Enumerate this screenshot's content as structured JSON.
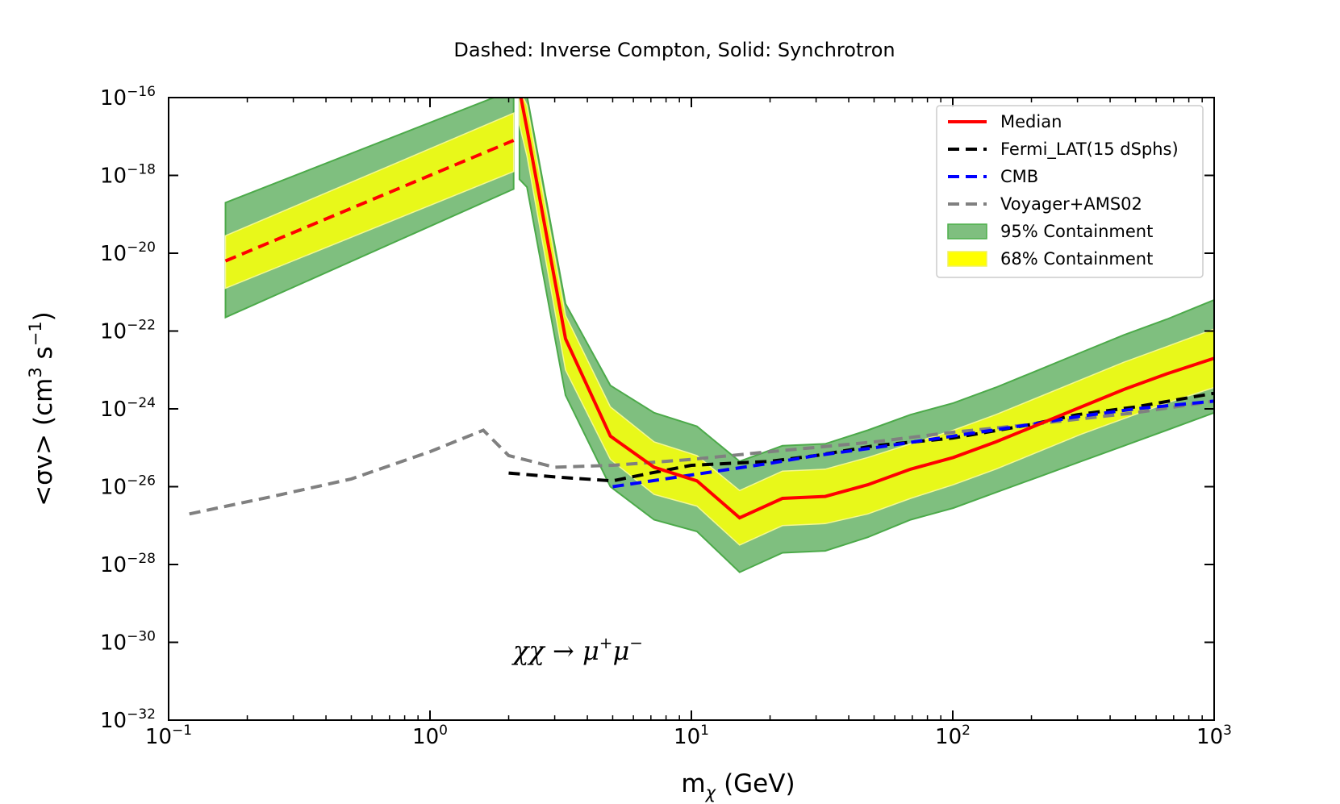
{
  "chart_data": {
    "type": "line",
    "title": "Dashed: Inverse Compton, Solid: Synchrotron",
    "xlabel": {
      "main": "m",
      "sub": "χ",
      "unit": "(GeV)"
    },
    "ylabel": {
      "prefix": "<σv> (cm",
      "sup1": "3",
      "mid": " s",
      "sup2": "−1",
      "suffix": ")"
    },
    "x_scale": "log",
    "y_scale": "log",
    "xlim": [
      0.1,
      1000
    ],
    "ylim": [
      1e-32,
      1e-16
    ],
    "x_ticks": [
      {
        "base": "10",
        "exp": "−1",
        "value": 0.1
      },
      {
        "base": "10",
        "exp": "0",
        "value": 1
      },
      {
        "base": "10",
        "exp": "1",
        "value": 10
      },
      {
        "base": "10",
        "exp": "2",
        "value": 100
      },
      {
        "base": "10",
        "exp": "3",
        "value": 1000
      }
    ],
    "y_ticks": [
      {
        "base": "10",
        "exp": "−16",
        "value": -16
      },
      {
        "base": "10",
        "exp": "−18",
        "value": -18
      },
      {
        "base": "10",
        "exp": "−20",
        "value": -20
      },
      {
        "base": "10",
        "exp": "−22",
        "value": -22
      },
      {
        "base": "10",
        "exp": "−24",
        "value": -24
      },
      {
        "base": "10",
        "exp": "−26",
        "value": -26
      },
      {
        "base": "10",
        "exp": "−28",
        "value": -28
      },
      {
        "base": "10",
        "exp": "−30",
        "value": -30
      },
      {
        "base": "10",
        "exp": "−32",
        "value": -32
      }
    ],
    "annotation": {
      "text": "χχ → μ",
      "sup1": "+",
      "mid": "μ",
      "sup2": "−"
    },
    "legend_position": "top-right",
    "legend": [
      {
        "label": "Median",
        "kind": "line",
        "color": "#ff0000",
        "dash": "solid"
      },
      {
        "label": "Fermi_LAT(15 dSphs)",
        "kind": "line",
        "color": "#000000",
        "dash": "dashed"
      },
      {
        "label": "CMB",
        "kind": "line",
        "color": "#0000ff",
        "dash": "dashed"
      },
      {
        "label": "Voyager+AMS02",
        "kind": "line",
        "color": "#808080",
        "dash": "dashed"
      },
      {
        "label": "95% Containment",
        "kind": "patch",
        "color": "#7fbf7f",
        "edge": "#4daf4a"
      },
      {
        "label": "68% Containment",
        "kind": "patch",
        "color": "#ffff00",
        "edge": "#f0f060"
      }
    ],
    "colors": {
      "band95_fill": "#7fbf7f",
      "band95_edge": "#4caa4a",
      "band68_fill": "#e8f81a",
      "band68_edge": "#f4f890",
      "median": "#ff0000",
      "fermi": "#000000",
      "cmb": "#0000ff",
      "voyager": "#808080"
    },
    "note_y": "y values are log10(<σv> in cm^3 s^-1)",
    "inverse_compton": {
      "x": [
        0.165,
        2.09
      ],
      "median": [
        -20.2,
        -17.1
      ],
      "band68_lo": [
        -20.9,
        -17.9
      ],
      "band68_hi": [
        -19.55,
        -16.4
      ],
      "band95_lo": [
        -21.65,
        -18.35
      ],
      "band95_hi": [
        -18.7,
        -15.8
      ]
    },
    "synchrotron": {
      "x": [
        2.2,
        2.35,
        3.3,
        4.9,
        7.2,
        10.5,
        15.3,
        22.3,
        32.5,
        47.3,
        69,
        100.5,
        146,
        213,
        310,
        452,
        658,
        1000
      ],
      "median": [
        -15.8,
        -16.8,
        -22.2,
        -24.7,
        -25.5,
        -25.85,
        -26.8,
        -26.3,
        -26.25,
        -25.95,
        -25.55,
        -25.25,
        -24.85,
        -24.4,
        -23.95,
        -23.5,
        -23.1,
        -22.7
      ],
      "band68_lo": [
        -16.7,
        -17.5,
        -23.0,
        -25.3,
        -26.2,
        -26.5,
        -27.5,
        -27.0,
        -26.95,
        -26.7,
        -26.3,
        -25.95,
        -25.55,
        -25.1,
        -24.65,
        -24.25,
        -23.85,
        -23.45
      ],
      "band68_hi": [
        -15.8,
        -16.2,
        -21.6,
        -23.95,
        -24.85,
        -25.2,
        -26.1,
        -25.6,
        -25.55,
        -25.25,
        -24.9,
        -24.55,
        -24.15,
        -23.7,
        -23.25,
        -22.8,
        -22.4,
        -21.95
      ],
      "band95_lo": [
        -18.1,
        -18.3,
        -23.65,
        -26.0,
        -26.85,
        -27.15,
        -28.2,
        -27.7,
        -27.65,
        -27.3,
        -26.85,
        -26.55,
        -26.15,
        -25.75,
        -25.35,
        -24.95,
        -24.55,
        -24.1
      ],
      "band95_hi": [
        -15.8,
        -15.95,
        -21.3,
        -23.4,
        -24.1,
        -24.45,
        -25.35,
        -24.95,
        -24.9,
        -24.55,
        -24.15,
        -23.85,
        -23.45,
        -23.0,
        -22.55,
        -22.1,
        -21.7,
        -21.2
      ]
    },
    "fermi_lat": {
      "x": [
        2.0,
        3.0,
        5.0,
        7.0,
        10.0,
        20.0,
        30.0,
        50.0,
        100.0,
        200.0,
        300.0,
        500.0,
        1000.0
      ],
      "y": [
        -25.65,
        -25.75,
        -25.85,
        -25.65,
        -25.45,
        -25.35,
        -25.2,
        -24.95,
        -24.75,
        -24.4,
        -24.15,
        -23.95,
        -23.6
      ]
    },
    "cmb": {
      "x": [
        5.0,
        10.0,
        20.0,
        30.0,
        50.0,
        100.0,
        200.0,
        300.0,
        500.0,
        1000.0
      ],
      "y": [
        -26.0,
        -25.7,
        -25.4,
        -25.2,
        -25.0,
        -24.7,
        -24.4,
        -24.2,
        -24.0,
        -23.8
      ]
    },
    "voyager_ams02": {
      "x": [
        0.12,
        0.25,
        0.5,
        1.0,
        1.6,
        2.0,
        3.0,
        5.0,
        10.0,
        20.0,
        50.0,
        100.0,
        200.0,
        500.0,
        1000.0
      ],
      "y": [
        -26.7,
        -26.25,
        -25.8,
        -25.1,
        -24.55,
        -25.2,
        -25.5,
        -25.45,
        -25.3,
        -25.1,
        -24.85,
        -24.6,
        -24.4,
        -24.1,
        -23.8
      ]
    }
  }
}
